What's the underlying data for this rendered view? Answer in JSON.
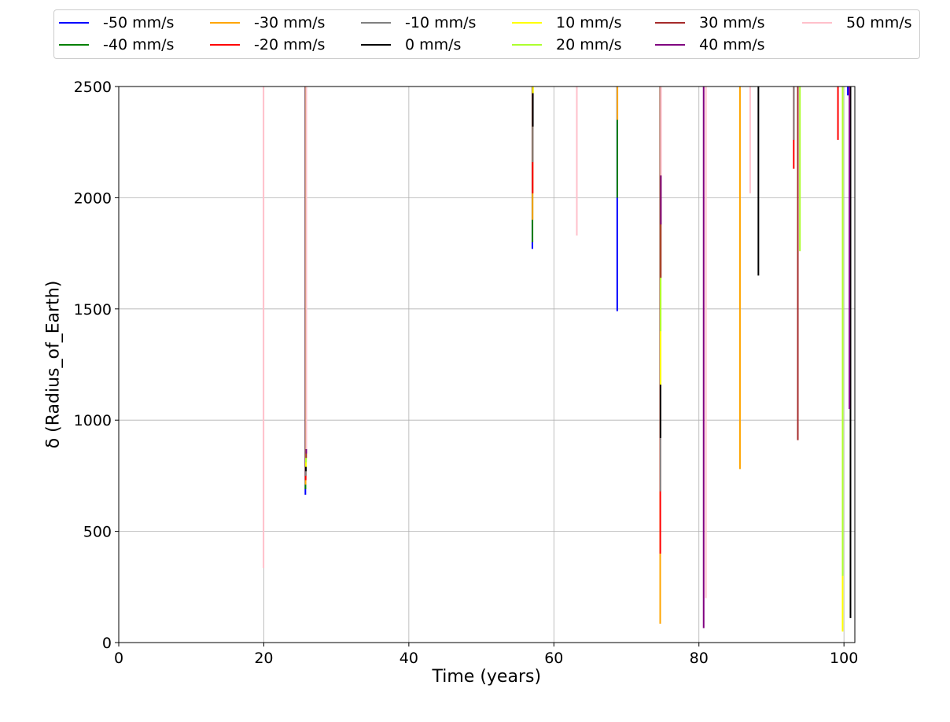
{
  "chart_data": {
    "type": "line",
    "title": "",
    "xlabel": "Time (years)",
    "ylabel": "δ (Radius_of_Earth)",
    "xlim": [
      0,
      101.5
    ],
    "ylim": [
      0,
      2500
    ],
    "xticks": [
      0,
      20,
      40,
      60,
      80,
      100
    ],
    "yticks": [
      0,
      500,
      1000,
      1500,
      2000,
      2500
    ],
    "grid": true,
    "legend_position": "top",
    "series": [
      {
        "name": "-50 mm/s",
        "color": "#0000ff",
        "segments": [
          [
            25.8,
            2500,
            665
          ],
          [
            57.1,
            2500,
            1770
          ],
          [
            68.8,
            2500,
            1490
          ],
          [
            100.6,
            2500,
            2460
          ]
        ]
      },
      {
        "name": "-40 mm/s",
        "color": "#008000",
        "segments": [
          [
            25.8,
            2500,
            690
          ],
          [
            57.1,
            2500,
            1800
          ],
          [
            68.8,
            2500,
            2000
          ]
        ]
      },
      {
        "name": "-30 mm/s",
        "color": "#ffa500",
        "segments": [
          [
            25.8,
            2500,
            710
          ],
          [
            57.1,
            2500,
            1900
          ],
          [
            68.8,
            2500,
            2350
          ],
          [
            74.7,
            2500,
            85
          ],
          [
            85.7,
            2500,
            780
          ]
        ]
      },
      {
        "name": "-20 mm/s",
        "color": "#ff0000",
        "segments": [
          [
            25.8,
            2500,
            730
          ],
          [
            57.1,
            2500,
            2020
          ],
          [
            74.7,
            2500,
            400
          ],
          [
            93.1,
            2500,
            2130
          ],
          [
            99.2,
            2500,
            2260
          ]
        ]
      },
      {
        "name": "-10 mm/s",
        "color": "#808080",
        "segments": [
          [
            25.8,
            2500,
            750
          ],
          [
            57.1,
            2500,
            2160
          ],
          [
            74.7,
            2500,
            680
          ],
          [
            93.1,
            2500,
            2260
          ]
        ]
      },
      {
        "name": "0 mm/s",
        "color": "#000000",
        "segments": [
          [
            25.8,
            2500,
            770
          ],
          [
            57.1,
            2500,
            2320
          ],
          [
            74.7,
            2500,
            920
          ],
          [
            88.2,
            2500,
            1650
          ],
          [
            100.9,
            2500,
            110
          ]
        ]
      },
      {
        "name": "10 mm/s",
        "color": "#ffff00",
        "segments": [
          [
            25.8,
            2500,
            790
          ],
          [
            57.1,
            2500,
            2470
          ],
          [
            74.7,
            2500,
            1160
          ],
          [
            99.8,
            2500,
            50
          ]
        ]
      },
      {
        "name": "20 mm/s",
        "color": "#adff2f",
        "segments": [
          [
            25.8,
            2500,
            810
          ],
          [
            74.7,
            2500,
            1400
          ],
          [
            93.9,
            2500,
            1760
          ],
          [
            99.8,
            2500,
            300
          ]
        ]
      },
      {
        "name": "30 mm/s",
        "color": "#a52a2a",
        "segments": [
          [
            25.8,
            2500,
            830
          ],
          [
            74.7,
            2500,
            1640
          ],
          [
            93.6,
            2500,
            910
          ]
        ]
      },
      {
        "name": "40 mm/s",
        "color": "#800080",
        "segments": [
          [
            25.8,
            2500,
            850
          ],
          [
            74.7,
            2500,
            1880
          ],
          [
            80.6,
            2500,
            65
          ],
          [
            100.7,
            2500,
            1050
          ]
        ]
      },
      {
        "name": "50 mm/s",
        "color": "#ffc0cb",
        "segments": [
          [
            19.9,
            2500,
            335
          ],
          [
            25.8,
            2500,
            870
          ],
          [
            63.1,
            2500,
            1830
          ],
          [
            74.7,
            2500,
            2100
          ],
          [
            80.9,
            2500,
            200
          ],
          [
            87.0,
            2500,
            2020
          ]
        ]
      }
    ]
  }
}
